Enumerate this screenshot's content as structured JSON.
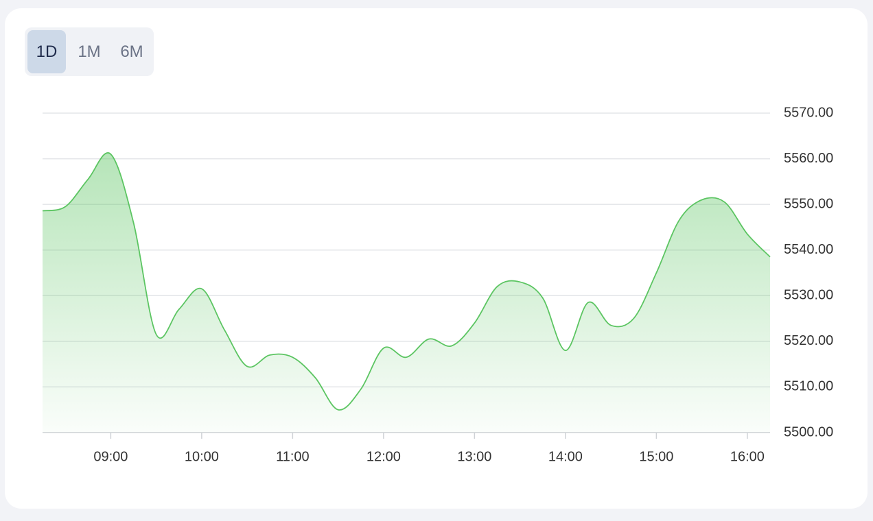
{
  "range_options": [
    "1D",
    "1M",
    "6M"
  ],
  "selected_range": 0,
  "chart_data": {
    "type": "area",
    "color": "#5cc562",
    "grid": true,
    "x": [
      8.25,
      8.5,
      8.75,
      9.0,
      9.25,
      9.5,
      9.75,
      10.0,
      10.25,
      10.5,
      10.75,
      11.0,
      11.25,
      11.5,
      11.75,
      12.0,
      12.25,
      12.5,
      12.75,
      13.0,
      13.25,
      13.5,
      13.75,
      14.0,
      14.25,
      14.5,
      14.75,
      15.0,
      15.25,
      15.5,
      15.75,
      16.0,
      16.25
    ],
    "values": [
      5548.6,
      5549.5,
      5555.5,
      5561,
      5546,
      5521.5,
      5527,
      5531.5,
      5522.5,
      5514.5,
      5517,
      5516.5,
      5512,
      5505,
      5509.5,
      5518.5,
      5516.5,
      5520.5,
      5519,
      5524,
      5532,
      5533,
      5529.5,
      5518,
      5528.5,
      5523.5,
      5525,
      5535,
      5546.5,
      5551,
      5550.5,
      5543.5,
      5538.5
    ],
    "xlim": [
      8.25,
      16.25
    ],
    "xticks": [
      {
        "value": 9,
        "label": "09:00"
      },
      {
        "value": 10,
        "label": "10:00"
      },
      {
        "value": 11,
        "label": "11:00"
      },
      {
        "value": 12,
        "label": "12:00"
      },
      {
        "value": 13,
        "label": "13:00"
      },
      {
        "value": 14,
        "label": "14:00"
      },
      {
        "value": 15,
        "label": "15:00"
      },
      {
        "value": 16,
        "label": "16:00"
      }
    ],
    "ylim": [
      5500,
      5570
    ],
    "yticks": [
      {
        "value": 5500,
        "label": "5500.00"
      },
      {
        "value": 5510,
        "label": "5510.00"
      },
      {
        "value": 5520,
        "label": "5520.00"
      },
      {
        "value": 5530,
        "label": "5530.00"
      },
      {
        "value": 5540,
        "label": "5540.00"
      },
      {
        "value": 5550,
        "label": "5550.00"
      },
      {
        "value": 5560,
        "label": "5560.00"
      },
      {
        "value": 5570,
        "label": "5570.00"
      }
    ]
  }
}
